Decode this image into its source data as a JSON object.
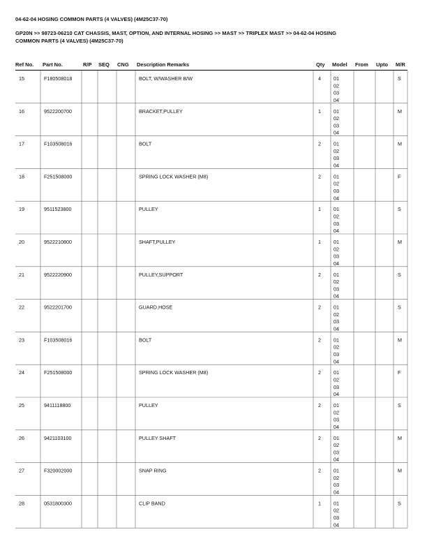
{
  "header": {
    "title": "04-62-04 HOSING COMMON PARTS (4 VALVES) (4M25C37-70)",
    "breadcrumb_line1": "GP20N >> 98723-06210 CAT CHASSIS, MAST, OPTION, AND INTERNAL HOSING >> MAST >> TRIPLEX MAST >> 04-62-04 HOSING",
    "breadcrumb_line2": "COMMON PARTS (4 VALVES) (4M25C37-70)"
  },
  "table": {
    "columns": [
      "Ref No.",
      "Part No.",
      "R/P",
      "SEQ",
      "CNG",
      "Description Remarks",
      "Qty",
      "Model",
      "From",
      "Upto",
      "M/R"
    ],
    "rows": [
      {
        "ref": "15",
        "part": "F180508018",
        "description": "BOLT, W/WASHER B/W",
        "qty": "4",
        "models": [
          "01",
          "02",
          "03",
          "04"
        ],
        "mr": "S"
      },
      {
        "ref": "16",
        "part": "9522200700",
        "description": "BRACKET,PULLEY",
        "qty": "1",
        "models": [
          "01",
          "02",
          "03",
          "04"
        ],
        "mr": "M"
      },
      {
        "ref": "17",
        "part": "F103508016",
        "description": "BOLT",
        "qty": "2",
        "models": [
          "01",
          "02",
          "03",
          "04"
        ],
        "mr": "M"
      },
      {
        "ref": "18",
        "part": "F251508000",
        "description": "SPRING LOCK WASHER (M8)",
        "qty": "2",
        "models": [
          "01",
          "02",
          "03",
          "04"
        ],
        "mr": "F"
      },
      {
        "ref": "19",
        "part": "9511523800",
        "description": "PULLEY",
        "qty": "1",
        "models": [
          "01",
          "02",
          "03",
          "04"
        ],
        "mr": "S"
      },
      {
        "ref": "20",
        "part": "9522210800",
        "description": "SHAFT,PULLEY",
        "qty": "1",
        "models": [
          "01",
          "02",
          "03",
          "04"
        ],
        "mr": "M"
      },
      {
        "ref": "21",
        "part": "9522220900",
        "description": "PULLEY,SUPPORT",
        "qty": "2",
        "models": [
          "01",
          "02",
          "03",
          "04"
        ],
        "mr": "S"
      },
      {
        "ref": "22",
        "part": "9522201700",
        "description": "GUARD,HOSE",
        "qty": "2",
        "models": [
          "01",
          "02",
          "03",
          "04"
        ],
        "mr": "S"
      },
      {
        "ref": "23",
        "part": "F103508016",
        "description": "BOLT",
        "qty": "2",
        "models": [
          "01",
          "02",
          "03",
          "04"
        ],
        "mr": "M"
      },
      {
        "ref": "24",
        "part": "F251508000",
        "description": "SPRING LOCK WASHER (M8)",
        "qty": "2",
        "models": [
          "01",
          "02",
          "03",
          "04"
        ],
        "mr": "F"
      },
      {
        "ref": "25",
        "part": "9411118800",
        "description": "PULLEY",
        "qty": "2",
        "models": [
          "01",
          "02",
          "03",
          "04"
        ],
        "mr": "S"
      },
      {
        "ref": "26",
        "part": "9421103100",
        "description": "PULLEY SHAFT",
        "qty": "2",
        "models": [
          "01",
          "02",
          "03",
          "04"
        ],
        "mr": "M"
      },
      {
        "ref": "27",
        "part": "F320002000",
        "description": "SNAP RING",
        "qty": "2",
        "models": [
          "01",
          "02",
          "03",
          "04"
        ],
        "mr": "M"
      },
      {
        "ref": "28",
        "part": "0531800300",
        "description": "CLIP BAND",
        "qty": "1",
        "models": [
          "01",
          "02",
          "03",
          "04"
        ],
        "mr": "S"
      }
    ]
  }
}
